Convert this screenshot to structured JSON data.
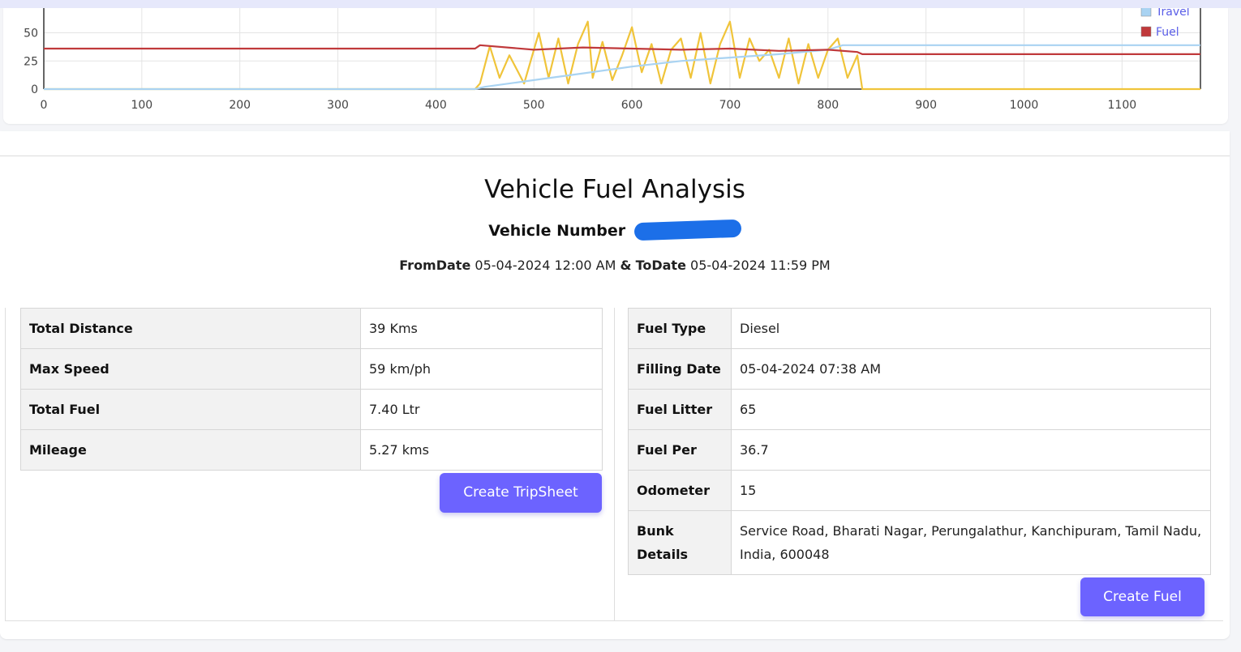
{
  "chart_data": {
    "type": "line",
    "x_ticks": [
      0,
      100,
      200,
      300,
      400,
      500,
      600,
      700,
      800,
      900,
      1000,
      1100
    ],
    "y_ticks": [
      0,
      25,
      50
    ],
    "xlim": [
      0,
      1180
    ],
    "ylim": [
      0,
      72
    ],
    "grid": true,
    "legend": [
      "Travel",
      "Fuel"
    ],
    "legend_position": "top-right",
    "series": [
      {
        "name": "Fuel",
        "color": "#c0393b",
        "x": [
          0,
          100,
          200,
          300,
          440,
          445,
          500,
          550,
          600,
          650,
          700,
          750,
          800,
          830,
          835,
          900,
          1000,
          1100,
          1180
        ],
        "y": [
          36,
          36,
          36,
          36,
          36,
          39,
          35,
          37,
          36,
          35,
          36,
          34,
          35,
          33,
          31,
          31,
          31,
          31,
          31
        ]
      },
      {
        "name": "Travel",
        "color": "#a9d3f2",
        "x": [
          0,
          440,
          450,
          500,
          550,
          600,
          650,
          700,
          750,
          800,
          815,
          900,
          1000,
          1100,
          1180
        ],
        "y": [
          0,
          0,
          2,
          8,
          14,
          20,
          25,
          28,
          31,
          35,
          39,
          39,
          39,
          39,
          39
        ]
      },
      {
        "color": "#f0c43a",
        "x": [
          0,
          440,
          445,
          455,
          465,
          475,
          490,
          505,
          515,
          525,
          535,
          545,
          555,
          560,
          570,
          580,
          590,
          600,
          610,
          620,
          630,
          640,
          650,
          660,
          670,
          680,
          690,
          700,
          710,
          720,
          730,
          740,
          750,
          760,
          770,
          780,
          790,
          800,
          810,
          820,
          830,
          835,
          900,
          1000,
          1100,
          1180
        ],
        "y": [
          0,
          0,
          5,
          38,
          10,
          30,
          5,
          50,
          10,
          45,
          5,
          40,
          60,
          10,
          42,
          8,
          30,
          55,
          15,
          40,
          5,
          35,
          45,
          10,
          50,
          5,
          40,
          60,
          10,
          45,
          25,
          35,
          10,
          45,
          5,
          40,
          10,
          35,
          45,
          10,
          30,
          0,
          0,
          0,
          0,
          0
        ]
      }
    ]
  },
  "page": {
    "title": "Vehicle Fuel Analysis",
    "vehicle_label": "Vehicle Number",
    "from_label": "FromDate",
    "from_value": "05-04-2024 12:00 AM",
    "amp": "&",
    "to_label": "ToDate",
    "to_value": "05-04-2024 11:59 PM"
  },
  "trip": {
    "rows": [
      {
        "label": "Total Distance",
        "value": "39 Kms"
      },
      {
        "label": "Max Speed",
        "value": "59 km/ph"
      },
      {
        "label": "Total Fuel",
        "value": "7.40 Ltr"
      },
      {
        "label": "Mileage",
        "value": "5.27 kms"
      }
    ],
    "button": "Create TripSheet"
  },
  "fuel": {
    "rows": [
      {
        "label": "Fuel Type",
        "value": "Diesel"
      },
      {
        "label": "Filling Date",
        "value": "05-04-2024 07:38 AM"
      },
      {
        "label": "Fuel Litter",
        "value": "65"
      },
      {
        "label": "Fuel Per",
        "value": "36.7"
      },
      {
        "label": "Odometer",
        "value": "15"
      },
      {
        "label": "Bunk Details",
        "value": "Service Road, Bharati Nagar, Perungalathur, Kanchipuram, Tamil Nadu, India, 600048"
      }
    ],
    "button": "Create Fuel"
  }
}
